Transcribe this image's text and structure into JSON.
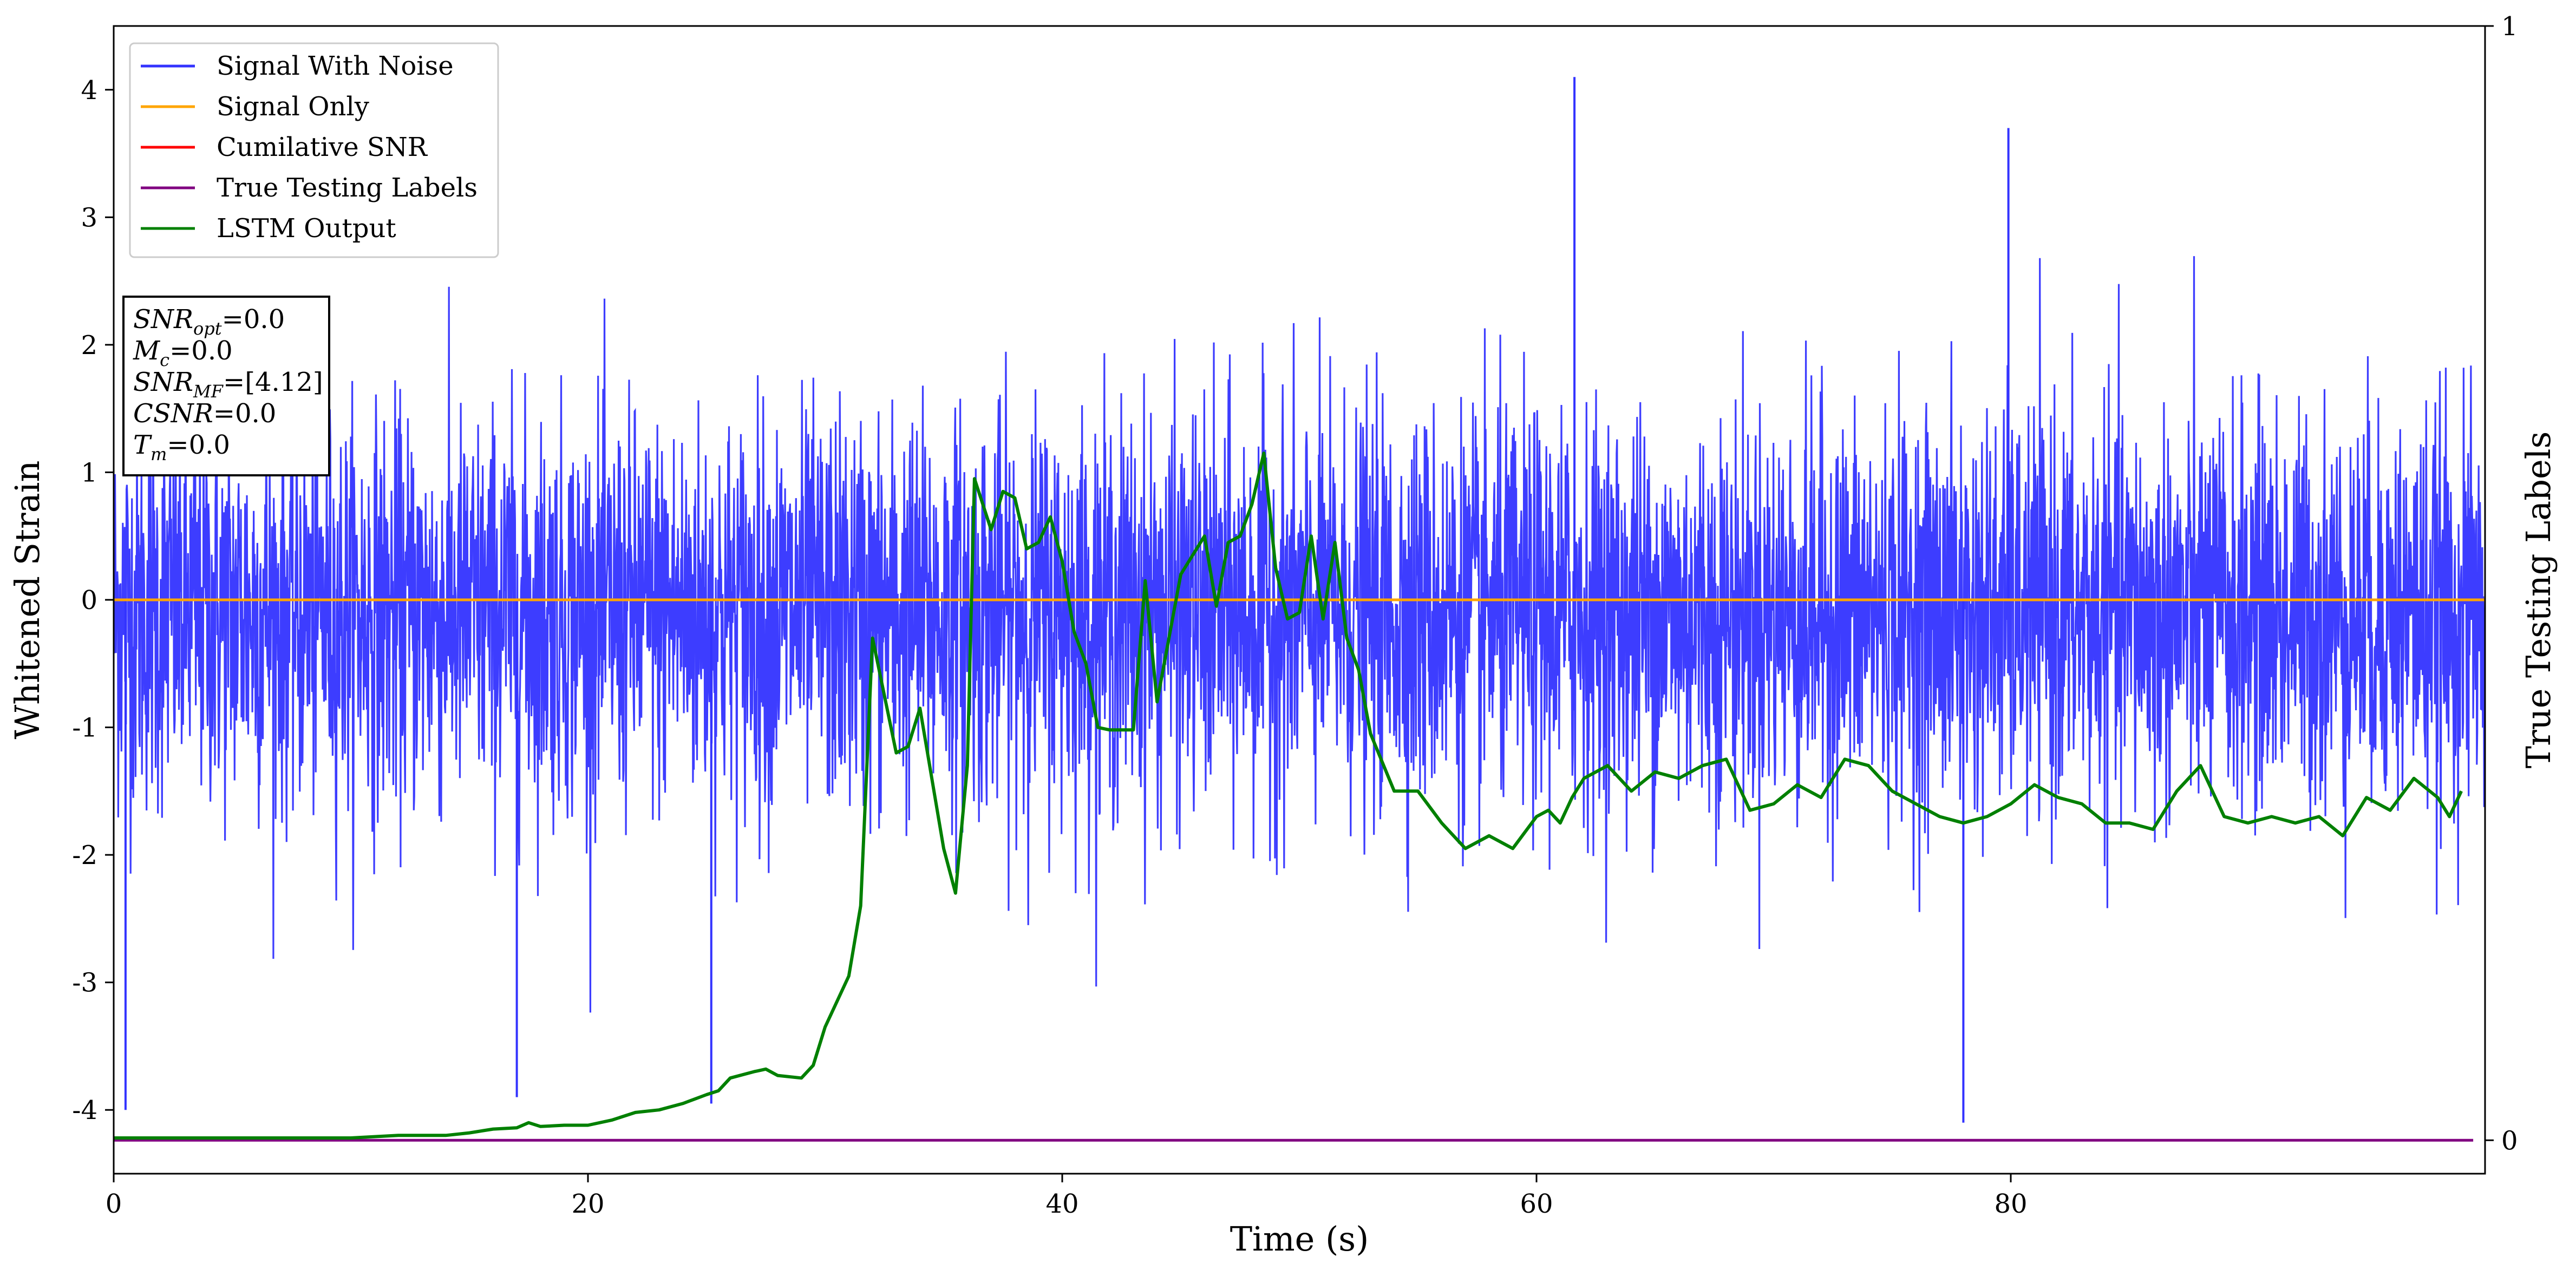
{
  "chart_data": {
    "type": "line",
    "title": "",
    "xlabel": "Time (s)",
    "ylabel": "Whitened Strain",
    "y2label": "True Testing Labels",
    "xlim": [
      0,
      100
    ],
    "ylim": [
      -4.5,
      4.5
    ],
    "y2lim": [
      -0.03,
      1.0
    ],
    "x_ticks": [
      0,
      20,
      40,
      60,
      80
    ],
    "y_ticks": [
      -4,
      -3,
      -2,
      -1,
      0,
      1,
      2,
      3,
      4
    ],
    "y2_ticks": [
      0,
      1
    ],
    "grid": false,
    "legend_position": "upper-left",
    "series": [
      {
        "name": "Signal With Noise",
        "color": "#3333ff",
        "axis": "left",
        "style": "noise",
        "x_range": [
          0,
          100
        ],
        "baseline": -0.1,
        "typical_range": [
          -1.7,
          1.5
        ],
        "extremes": [
          {
            "x": 0.5,
            "y": -4.0
          },
          {
            "x": 17.0,
            "y": -3.9
          },
          {
            "x": 25.2,
            "y": -3.95
          },
          {
            "x": 61.6,
            "y": 4.1
          },
          {
            "x": 78.0,
            "y": -4.1
          },
          {
            "x": 79.9,
            "y": 3.7
          }
        ]
      },
      {
        "name": "Signal Only",
        "color": "#ffa500",
        "axis": "left",
        "x": [
          0,
          100
        ],
        "y": [
          0,
          0
        ]
      },
      {
        "name": "Cumilative SNR",
        "color": "#ff0000",
        "axis": "left",
        "x": [],
        "y": []
      },
      {
        "name": "True Testing Labels",
        "color": "#800080",
        "axis": "right",
        "x": [
          0,
          99.5
        ],
        "y": [
          0,
          0
        ]
      },
      {
        "name": "LSTM Output",
        "color": "#008000",
        "axis": "left",
        "x": [
          0,
          5,
          10,
          12,
          14,
          15,
          16,
          17,
          17.5,
          18,
          19,
          20,
          21,
          22,
          23,
          24,
          25,
          25.5,
          26,
          27,
          27.5,
          28,
          29,
          29.5,
          30,
          31,
          31.5,
          32,
          33,
          33.5,
          34,
          35,
          35.5,
          36,
          36.3,
          37,
          37.5,
          38,
          38.5,
          39,
          39.5,
          40,
          40.5,
          41,
          41.5,
          42,
          43,
          43.5,
          44,
          45,
          45.5,
          46,
          46.5,
          47,
          47.5,
          48,
          48.5,
          49,
          49.5,
          50,
          50.5,
          51,
          51.5,
          52,
          52.5,
          53,
          54,
          55,
          56,
          57,
          58,
          59,
          60,
          60.5,
          61,
          61.5,
          62,
          63,
          64,
          65,
          66,
          67,
          68,
          69,
          70,
          71,
          72,
          73,
          74,
          75,
          76,
          77,
          78,
          79,
          80,
          81,
          82,
          83,
          84,
          85,
          86,
          87,
          88,
          89,
          90,
          91,
          92,
          93,
          94,
          95,
          96,
          97,
          98,
          98.5,
          99
        ],
        "y": [
          -4.22,
          -4.22,
          -4.22,
          -4.2,
          -4.2,
          -4.18,
          -4.15,
          -4.14,
          -4.1,
          -4.13,
          -4.12,
          -4.12,
          -4.08,
          -4.02,
          -4.0,
          -3.95,
          -3.88,
          -3.85,
          -3.75,
          -3.7,
          -3.68,
          -3.73,
          -3.75,
          -3.65,
          -3.35,
          -2.95,
          -2.4,
          -0.3,
          -1.2,
          -1.15,
          -0.85,
          -1.95,
          -2.3,
          -1.3,
          0.95,
          0.55,
          0.85,
          0.8,
          0.4,
          0.45,
          0.65,
          0.3,
          -0.25,
          -0.5,
          -1.0,
          -1.02,
          -1.02,
          0.15,
          -0.8,
          0.2,
          0.35,
          0.5,
          -0.05,
          0.45,
          0.5,
          0.75,
          1.15,
          0.25,
          -0.15,
          -0.1,
          0.5,
          -0.15,
          0.45,
          -0.3,
          -0.55,
          -1.05,
          -1.5,
          -1.5,
          -1.75,
          -1.95,
          -1.85,
          -1.95,
          -1.7,
          -1.65,
          -1.75,
          -1.55,
          -1.4,
          -1.3,
          -1.5,
          -1.35,
          -1.4,
          -1.3,
          -1.25,
          -1.65,
          -1.6,
          -1.45,
          -1.55,
          -1.25,
          -1.3,
          -1.5,
          -1.6,
          -1.7,
          -1.75,
          -1.7,
          -1.6,
          -1.45,
          -1.55,
          -1.6,
          -1.75,
          -1.75,
          -1.8,
          -1.5,
          -1.3,
          -1.7,
          -1.75,
          -1.7,
          -1.75,
          -1.7,
          -1.85,
          -1.55,
          -1.65,
          -1.4,
          -1.55,
          -1.7,
          -1.5
        ]
      }
    ],
    "annotations": [
      {
        "base": "SNR",
        "sub": "opt",
        "value": "0.0"
      },
      {
        "base": "M",
        "sub": "c",
        "value": "0.0"
      },
      {
        "base": "SNR",
        "sub": "MF",
        "value": "[4.12]"
      },
      {
        "base": "CSNR",
        "sub": "",
        "value": "0.0"
      },
      {
        "base": "T",
        "sub": "m",
        "value": "0.0"
      }
    ]
  }
}
